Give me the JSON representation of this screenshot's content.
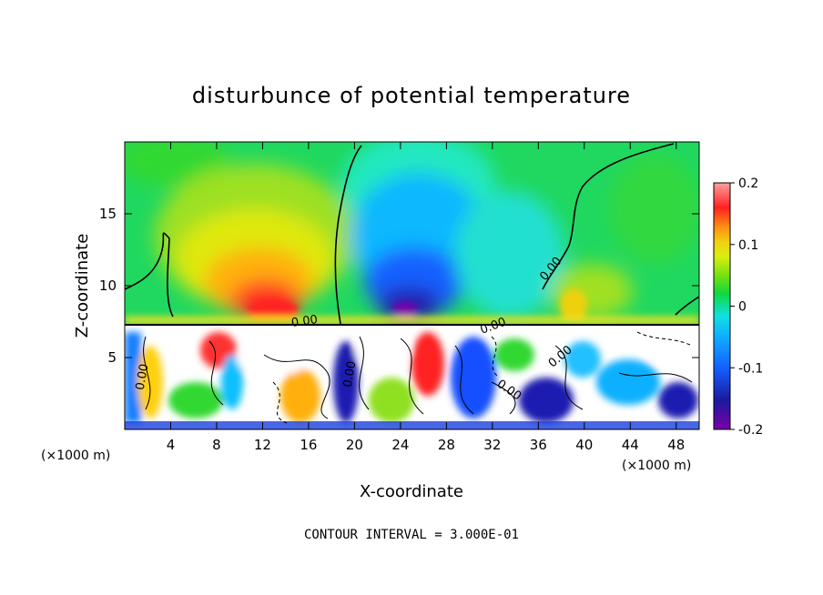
{
  "chart_data": {
    "type": "heatmap",
    "title": "disturbunce of potential temperature",
    "xlabel": "X-coordinate",
    "ylabel": "Z-coordinate",
    "x_unit": "(×1000 m)",
    "y_unit": "(×1000 m)",
    "xlim": [
      0,
      50
    ],
    "ylim": [
      0,
      20
    ],
    "x_ticks": [
      4,
      8,
      12,
      16,
      20,
      24,
      28,
      32,
      36,
      40,
      44,
      48
    ],
    "y_ticks": [
      5,
      10,
      15
    ],
    "colorbar": {
      "range": [
        -0.2,
        0.2
      ],
      "tick_labels": [
        "0.2",
        "0.1",
        "0",
        "-0.1",
        "-0.2"
      ],
      "tick_values": [
        0.2,
        0.1,
        0,
        -0.1,
        -0.2
      ]
    },
    "contour_labels": [
      "0.00",
      "0.00",
      "0.00",
      "0.00",
      "0.00",
      "0.00",
      "0.00"
    ],
    "footer": "CONTOUR INTERVAL = 3.000E-01"
  }
}
